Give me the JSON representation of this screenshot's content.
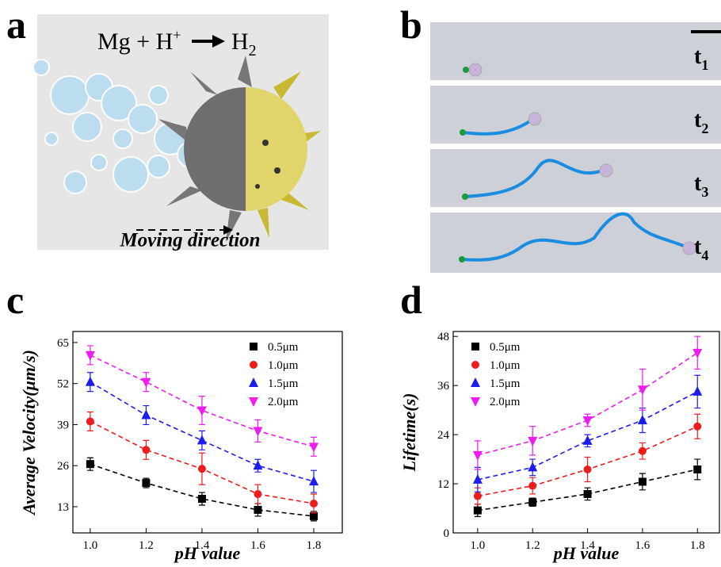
{
  "panel_labels": [
    "a",
    "b",
    "c",
    "d"
  ],
  "reaction": [
    "Mg + H",
    "+",
    "H",
    "2"
  ],
  "moving_direction": "Moving direction",
  "frames": [
    {
      "t": "t",
      "sub": "1"
    },
    {
      "t": "t",
      "sub": "2"
    },
    {
      "t": "t",
      "sub": "3"
    },
    {
      "t": "t",
      "sub": "4"
    }
  ],
  "chart_data": [
    {
      "type": "scatter",
      "x_label": "pH value",
      "y_label": "Average Velocity(μm/s)",
      "xlim": [
        0.938,
        1.902
      ],
      "ylim": [
        4.7,
        68.5
      ],
      "xticks": [
        {
          "value": 1,
          "label": "1.0"
        },
        {
          "value": 1.2,
          "label": "1.2"
        },
        {
          "value": 1.4,
          "label": "1.4"
        },
        {
          "value": 1.6,
          "label": "1.6"
        },
        {
          "value": 1.8,
          "label": "1.8"
        }
      ],
      "yticks": [
        13,
        26,
        39,
        52,
        65
      ],
      "x": [
        1.0,
        1.2,
        1.4,
        1.6,
        1.8
      ],
      "series": [
        {
          "name": "0.5μm",
          "color": "#000000",
          "marker": "square",
          "values": [
            26.5,
            20.5,
            15.5,
            12,
            10
          ],
          "errors": [
            2,
            1.5,
            2,
            2,
            1.5
          ]
        },
        {
          "name": "1.0μm",
          "color": "#ee1c1c",
          "marker": "circle",
          "values": [
            40,
            31,
            25,
            17,
            14
          ],
          "errors": [
            3,
            3,
            5,
            3,
            3
          ]
        },
        {
          "name": "1.5μm",
          "color": "#1c1cee",
          "marker": "triangle",
          "values": [
            52.5,
            42,
            34,
            26,
            21
          ],
          "errors": [
            3,
            3,
            3,
            2,
            3.5
          ]
        },
        {
          "name": "2.0μm",
          "color": "#ee1cee",
          "marker": "triangle-down",
          "values": [
            61,
            52.5,
            43.5,
            37,
            32
          ],
          "errors": [
            3,
            3,
            4.5,
            3.5,
            3
          ]
        }
      ]
    },
    {
      "type": "scatter",
      "x_label": "pH value",
      "y_label": "Lifetime(s)",
      "xlim": [
        0.911,
        1.88
      ],
      "ylim": [
        0,
        49.2
      ],
      "xticks": [
        {
          "value": 1,
          "label": "1.0"
        },
        {
          "value": 1.2,
          "label": "1.2"
        },
        {
          "value": 1.4,
          "label": "1.4"
        },
        {
          "value": 1.6,
          "label": "1.6"
        },
        {
          "value": 1.8,
          "label": "1.8"
        }
      ],
      "yticks": [
        0,
        12,
        24,
        36,
        48
      ],
      "x": [
        1.0,
        1.2,
        1.4,
        1.6,
        1.8
      ],
      "series": [
        {
          "name": "0.5μm",
          "color": "#000000",
          "marker": "square",
          "values": [
            5.5,
            7.5,
            9.5,
            12.5,
            15.5
          ],
          "errors": [
            1.5,
            1,
            1.5,
            2,
            2.5
          ]
        },
        {
          "name": "1.0μm",
          "color": "#ee1c1c",
          "marker": "circle",
          "values": [
            9,
            11.5,
            15.5,
            20,
            26
          ],
          "errors": [
            2,
            2,
            3,
            2,
            3
          ]
        },
        {
          "name": "1.5μm",
          "color": "#1c1cee",
          "marker": "triangle",
          "values": [
            13,
            16,
            22.5,
            27.5,
            34.5
          ],
          "errors": [
            3,
            2,
            1.5,
            3,
            4
          ]
        },
        {
          "name": "2.0μm",
          "color": "#ee1cee",
          "marker": "triangle-down",
          "values": [
            19,
            22.5,
            27.5,
            35,
            44
          ],
          "errors": [
            3.5,
            3.5,
            1.5,
            5,
            4
          ]
        }
      ]
    }
  ]
}
